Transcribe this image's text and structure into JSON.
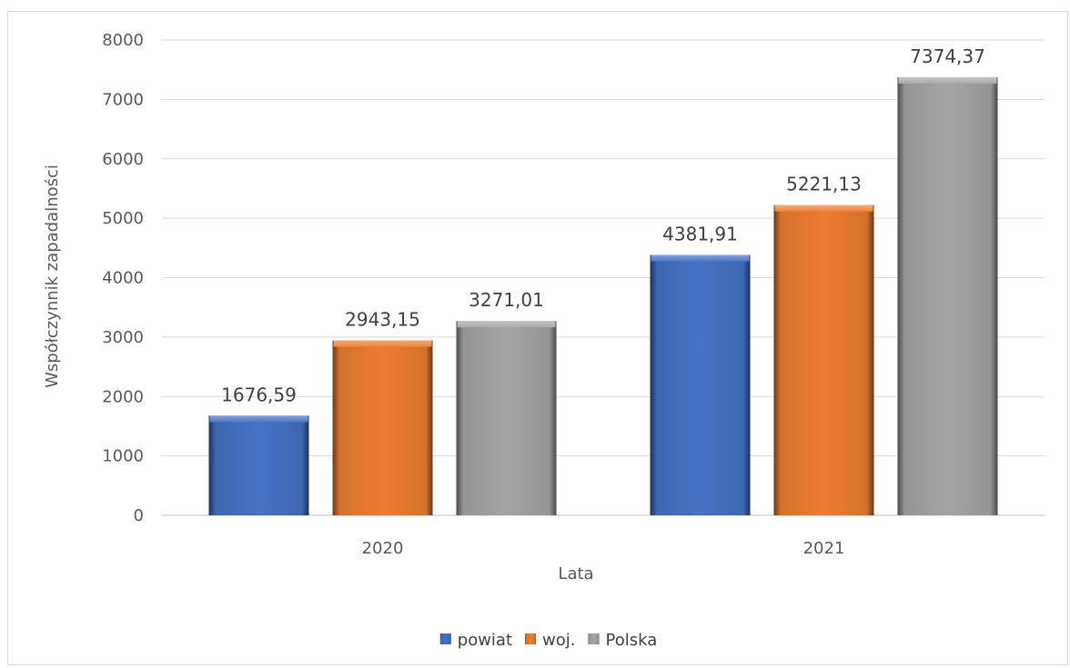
{
  "chart_data": {
    "type": "bar",
    "categories": [
      "2020",
      "2021"
    ],
    "series": [
      {
        "name": "powiat",
        "values": [
          1676.59,
          4381.91
        ],
        "labels": [
          "1676,59",
          "4381,91"
        ],
        "color": "#4472C4"
      },
      {
        "name": "woj.",
        "values": [
          2943.15,
          5221.13
        ],
        "labels": [
          "2943,15",
          "5221,13"
        ],
        "color": "#ED7D31"
      },
      {
        "name": "Polska",
        "values": [
          3271.01,
          7374.37
        ],
        "labels": [
          "3271,01",
          "7374,37"
        ],
        "color": "#A5A5A5"
      }
    ],
    "xlabel": "Lata",
    "ylabel": "Współczynnik zapadalności",
    "ylim": [
      0,
      8000
    ],
    "yticks": [
      "0",
      "1000",
      "2000",
      "3000",
      "4000",
      "5000",
      "6000",
      "7000",
      "8000"
    ],
    "grid": true,
    "legend_position": "bottom"
  }
}
